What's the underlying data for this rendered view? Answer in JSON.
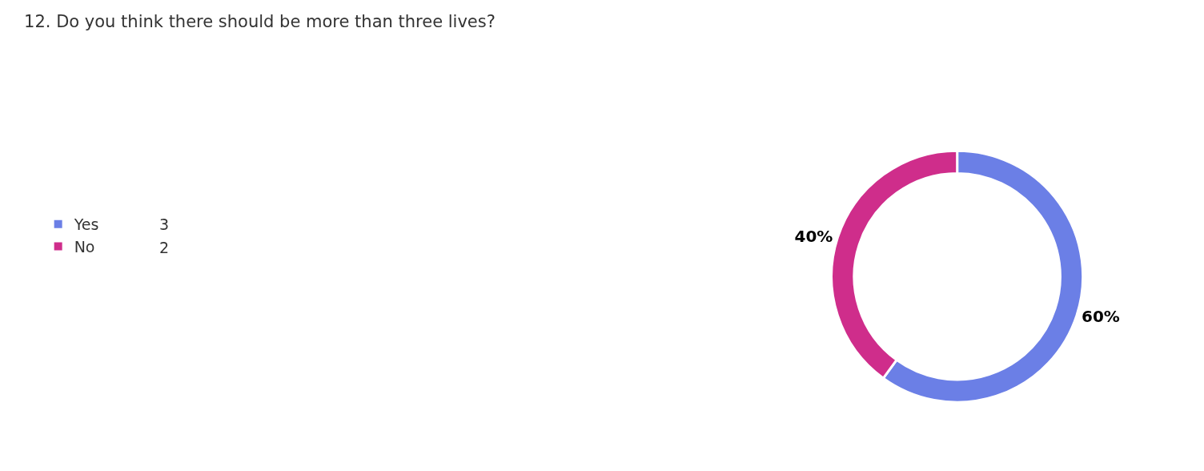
{
  "chart_data": {
    "type": "donut",
    "title": "12. Do you think there should be more than three lives?",
    "categories": [
      "Yes",
      "No"
    ],
    "values": [
      60,
      40
    ],
    "colors": [
      "#6b7fe6",
      "#cf2d8b"
    ],
    "value_labels": [
      "60%",
      "40%"
    ],
    "annotations": [
      "3",
      "2"
    ],
    "legend": "left"
  }
}
